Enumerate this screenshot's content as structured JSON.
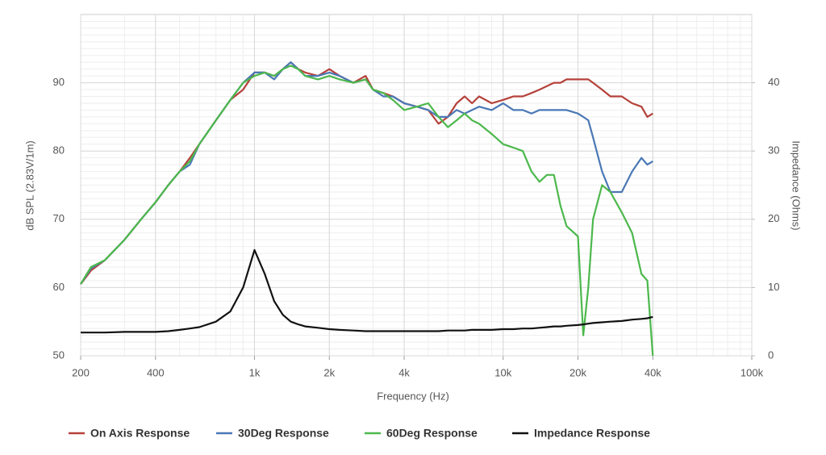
{
  "chart_data": {
    "type": "line",
    "xlabel": "Frequency (Hz)",
    "ylabel": "dB SPL (2.83V/1m)",
    "y2label": "Impedance (Ohms)",
    "xscale": "log",
    "grid": true,
    "legend": "bottom",
    "xlim": [
      200,
      100000
    ],
    "xticks": [
      200,
      400,
      {
        "value": 1000,
        "label": "1k"
      },
      {
        "value": 2000,
        "label": "2k"
      },
      {
        "value": 4000,
        "label": "4k"
      },
      {
        "value": 10000,
        "label": "10k"
      },
      {
        "value": 20000,
        "label": "20k"
      },
      {
        "value": 40000,
        "label": "40k"
      },
      {
        "value": 100000,
        "label": "100k"
      }
    ],
    "ylim": [
      50,
      100
    ],
    "yticks": [
      50,
      60,
      70,
      80,
      90
    ],
    "y2lim": [
      0,
      50
    ],
    "y2ticks": [
      0,
      10,
      20,
      30,
      40
    ],
    "x": [
      200,
      220,
      250,
      300,
      350,
      400,
      450,
      500,
      550,
      600,
      700,
      800,
      900,
      1000,
      1100,
      1200,
      1300,
      1400,
      1500,
      1600,
      1800,
      2000,
      2200,
      2500,
      2800,
      3000,
      3300,
      3600,
      4000,
      4500,
      5000,
      5500,
      6000,
      6500,
      7000,
      7500,
      8000,
      9000,
      10000,
      11000,
      12000,
      13000,
      14000,
      15000,
      16000,
      17000,
      18000,
      20000,
      21000,
      22000,
      23000,
      25000,
      27000,
      30000,
      33000,
      36000,
      38000,
      40000
    ],
    "series": [
      {
        "name": "On Axis Response",
        "color": "#b5413a",
        "values": [
          60.5,
          62.5,
          64,
          67,
          70,
          72.5,
          75,
          77,
          79,
          81,
          84.5,
          87.5,
          89,
          91.5,
          91.5,
          91,
          92,
          93,
          92,
          91.5,
          91,
          92,
          91,
          90,
          91,
          89,
          88.5,
          88,
          87,
          86.5,
          86,
          84,
          85,
          87,
          88,
          87,
          88,
          87,
          87.5,
          88,
          88,
          88.5,
          89,
          89.5,
          90,
          90,
          90.5,
          90.5,
          90.5,
          90.5,
          90,
          89,
          88,
          88,
          87,
          86.5,
          85,
          85.5
        ]
      },
      {
        "name": "30Deg Response",
        "color": "#4a78b5",
        "values": [
          60.5,
          62.8,
          64,
          67,
          70,
          72.5,
          75,
          77,
          78,
          81,
          84.5,
          87.5,
          90,
          91.5,
          91.5,
          90.5,
          92,
          93,
          92,
          91,
          91,
          91.5,
          91,
          90,
          90.5,
          89,
          88,
          88,
          87,
          86.5,
          86,
          85,
          85,
          86,
          85.5,
          86,
          86.5,
          86,
          87,
          86,
          86,
          85.5,
          86,
          86,
          86,
          86,
          86,
          85.5,
          85,
          84.5,
          82,
          77,
          74,
          74,
          77,
          79,
          78,
          78.5
        ]
      },
      {
        "name": "60Deg Response",
        "color": "#4cb84c",
        "values": [
          60.5,
          63,
          64,
          67,
          70,
          72.5,
          75,
          77,
          78.5,
          81,
          84.5,
          87.5,
          90,
          91,
          91.5,
          91,
          92,
          92.5,
          92,
          91,
          90.5,
          91,
          90.5,
          90,
          90.5,
          89,
          88.5,
          87.5,
          86,
          86.5,
          87,
          85,
          83.5,
          84.5,
          85.5,
          84.5,
          84,
          82.5,
          81,
          80.5,
          80,
          77,
          75.5,
          76.5,
          76.5,
          72,
          69,
          67.5,
          53,
          60,
          70,
          75,
          74,
          71,
          68,
          62,
          61,
          50
        ]
      },
      {
        "name": "Impedance Response",
        "color": "#111111",
        "axis": "y2",
        "values": [
          3.4,
          3.4,
          3.4,
          3.5,
          3.5,
          3.5,
          3.6,
          3.8,
          4,
          4.2,
          5,
          6.5,
          10,
          15.5,
          12,
          8,
          6,
          5,
          4.6,
          4.3,
          4.1,
          3.9,
          3.8,
          3.7,
          3.6,
          3.6,
          3.6,
          3.6,
          3.6,
          3.6,
          3.6,
          3.6,
          3.7,
          3.7,
          3.7,
          3.8,
          3.8,
          3.8,
          3.9,
          3.9,
          4,
          4,
          4.1,
          4.2,
          4.3,
          4.3,
          4.4,
          4.5,
          4.6,
          4.7,
          4.8,
          4.9,
          5,
          5.1,
          5.3,
          5.4,
          5.5,
          5.7
        ]
      }
    ]
  }
}
